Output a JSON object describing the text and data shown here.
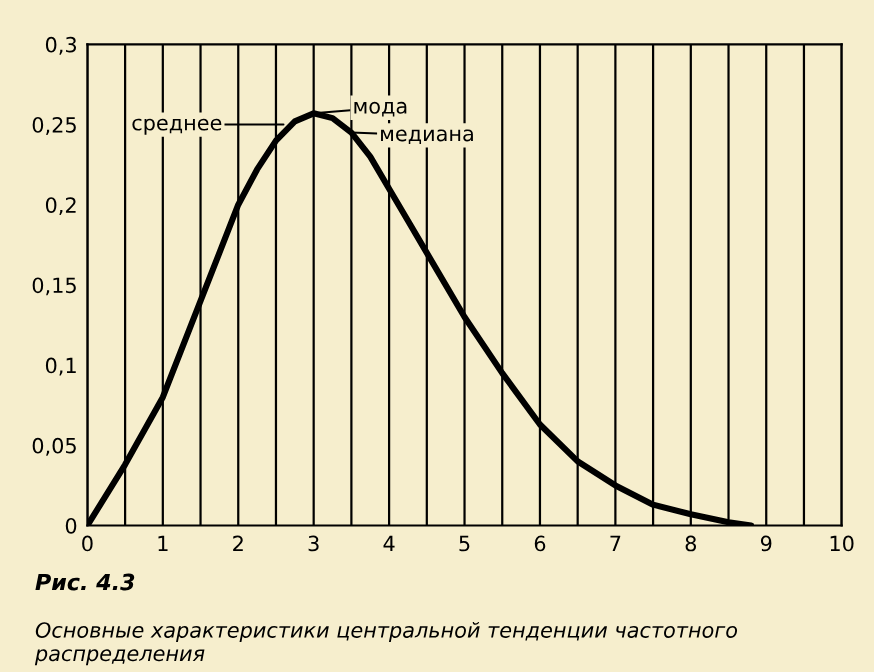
{
  "chart_data": {
    "type": "line",
    "x": [
      0,
      0.5,
      1,
      1.5,
      2,
      2.25,
      2.5,
      2.75,
      3,
      3.25,
      3.5,
      3.75,
      4,
      4.25,
      4.5,
      5,
      5.5,
      6,
      6.5,
      7,
      7.5,
      8,
      8.5,
      8.8
    ],
    "series": [
      {
        "color": "#000000",
        "values": [
          0,
          0.038,
          0.08,
          0.14,
          0.2,
          0.222,
          0.24,
          0.252,
          0.257,
          0.254,
          0.245,
          0.23,
          0.21,
          0.19,
          0.17,
          0.13,
          0.095,
          0.063,
          0.04,
          0.025,
          0.013,
          0.007,
          0.002,
          0
        ]
      }
    ],
    "xlim": [
      0,
      10
    ],
    "ylim": [
      0,
      0.3
    ],
    "xticks": [
      0,
      {
        "value": 0.5,
        "label": null
      },
      1,
      {
        "value": 1.5,
        "label": null
      },
      2,
      {
        "value": 2.5,
        "label": null
      },
      3,
      {
        "value": 3.5,
        "label": null
      },
      4,
      {
        "value": 4.5,
        "label": null
      },
      5,
      {
        "value": 5.5,
        "label": null
      },
      6,
      {
        "value": 6.5,
        "label": null
      },
      7,
      {
        "value": 7.5,
        "label": null
      },
      8,
      {
        "value": 8.5,
        "label": null
      },
      9,
      {
        "value": 9.5,
        "label": null
      },
      10
    ],
    "yticks": [
      0,
      {
        "value": 0.05,
        "label": "0,05"
      },
      {
        "value": 0.1,
        "label": "0,1"
      },
      {
        "value": 0.15,
        "label": "0,15"
      },
      {
        "value": 0.2,
        "label": "0,2"
      },
      {
        "value": 0.25,
        "label": "0,25"
      },
      {
        "value": 0.3,
        "label": "0,3"
      }
    ],
    "grid": "x",
    "marker": "none",
    "line_style": "solid",
    "annotations": [
      {
        "text": "среднее",
        "x": 2.6,
        "y": 0.25
      },
      {
        "text": "мода",
        "x": 3.0,
        "y": 0.257
      },
      {
        "text": "медиана",
        "x": 3.5,
        "y": 0.245
      },
      "Рис. 4.3",
      "Основные характеристики центральной тенденции частотного распределения"
    ]
  }
}
